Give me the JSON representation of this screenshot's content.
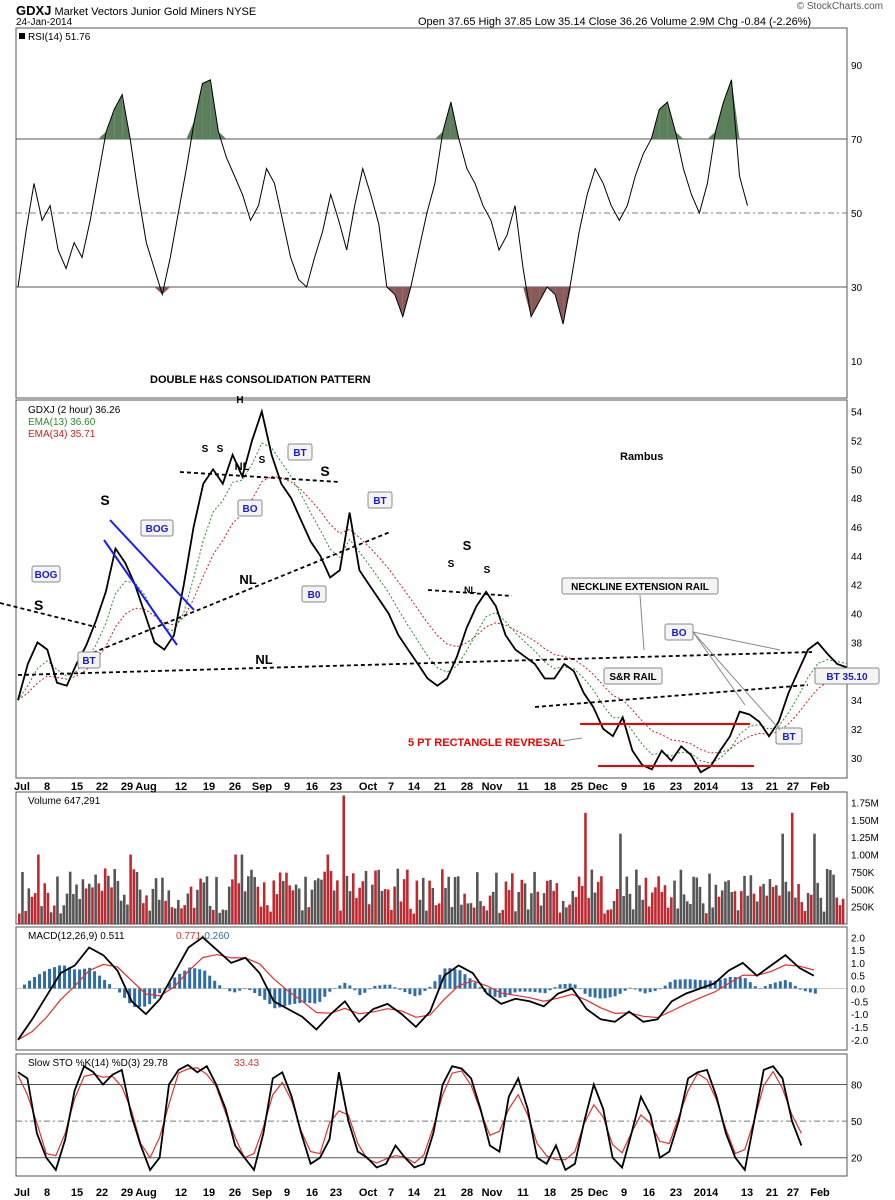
{
  "header": {
    "symbol": "GDXJ",
    "name": "Market Vectors Junior Gold Miners",
    "exchange": "NYSE",
    "date": "24-Jan-2014",
    "quote": "Open 37.65  High 37.85  Low 35.14  Close 36.26  Volume 2.9M  Chg -0.84 (-2.26%)",
    "brand": "© StockCharts.com"
  },
  "colors": {
    "price": "#000000",
    "ema13": "#2e8b2e",
    "ema34": "#cc2222",
    "rsi_overbought_fill": "#5a7f5a",
    "rsi_oversold_fill": "#8a5a5a",
    "volume_up": "#555555",
    "volume_down": "#c0282e",
    "macd_line": "#000000",
    "macd_signal": "#e03030",
    "macd_hist": "#2e6ea8",
    "sto_k": "#000000",
    "sto_d": "#e03030",
    "trend_blue": "#1a1aff",
    "rect_red": "#ee0000",
    "box_text": "#1a1ad0"
  },
  "chart_data": [
    {
      "type": "line",
      "panel": "rsi",
      "legend": "RSI(14) 51.76",
      "ylim": [
        0,
        100
      ],
      "yticks": [
        10,
        30,
        50,
        70,
        90
      ],
      "levels": [
        30,
        50,
        70
      ],
      "values": [
        30,
        45,
        58,
        48,
        52,
        40,
        35,
        42,
        38,
        48,
        60,
        72,
        78,
        82,
        70,
        55,
        42,
        35,
        28,
        38,
        50,
        62,
        75,
        85,
        86,
        72,
        65,
        60,
        55,
        48,
        52,
        62,
        58,
        48,
        38,
        32,
        30,
        38,
        45,
        55,
        48,
        40,
        52,
        62,
        55,
        47,
        30,
        28,
        22,
        30,
        40,
        50,
        58,
        72,
        80,
        70,
        62,
        58,
        52,
        48,
        40,
        44,
        52,
        35,
        22,
        26,
        30,
        28,
        20,
        32,
        45,
        55,
        62,
        58,
        52,
        48,
        52,
        60,
        66,
        70,
        78,
        80,
        72,
        62,
        55,
        50,
        58,
        72,
        80,
        86,
        60,
        52
      ],
      "x_fraction_last": 0.88
    },
    {
      "type": "line",
      "panel": "price",
      "legend": [
        "GDXJ (2 hour) 36.26",
        "EMA(13) 36.60",
        "EMA(34) 35.71"
      ],
      "title": "DOUBLE H&S CONSOLIDATION PATTERN",
      "author": "Rambus",
      "ylim": [
        28.6,
        54.8
      ],
      "yticks": [
        30,
        32,
        34,
        36,
        38,
        40,
        42,
        44,
        46,
        48,
        50,
        52,
        54
      ],
      "x_ticks": [
        "Jul",
        "8",
        "15",
        "22",
        "29",
        "Aug",
        "12",
        "19",
        "26",
        "Sep",
        "9",
        "16",
        "23",
        "Oct",
        "7",
        "14",
        "21",
        "28",
        "Nov",
        "11",
        "18",
        "25",
        "Dec",
        "9",
        "16",
        "23",
        "2014",
        "13",
        "21",
        "27",
        "Feb"
      ],
      "close": [
        34.0,
        36.5,
        38.0,
        37.5,
        35.2,
        35.0,
        36.5,
        37.8,
        39.5,
        41.5,
        44.5,
        43.5,
        42.0,
        40.0,
        38.0,
        37.5,
        38.5,
        42.0,
        46.0,
        49.0,
        50.0,
        49.0,
        51.0,
        49.5,
        52.0,
        54.0,
        51.0,
        49.0,
        48.0,
        46.5,
        45.0,
        44.0,
        42.5,
        43.0,
        47.0,
        43.0,
        42.0,
        41.0,
        40.0,
        38.5,
        37.5,
        36.5,
        35.5,
        35.0,
        35.5,
        37.0,
        39.0,
        40.5,
        41.5,
        40.5,
        38.5,
        37.5,
        37.0,
        36.5,
        35.5,
        35.5,
        36.5,
        36.0,
        34.5,
        33.5,
        32.0,
        31.5,
        32.8,
        30.5,
        29.5,
        29.2,
        30.5,
        29.8,
        30.8,
        30.2,
        29.0,
        29.4,
        30.5,
        31.5,
        33.2,
        33.0,
        32.5,
        31.5,
        32.5,
        34.5,
        36.0,
        37.5,
        38.0,
        37.2,
        36.5,
        36.26
      ],
      "annotations": [
        "S",
        "BOG",
        "BT",
        "NL",
        "S",
        "BOG",
        "S",
        "S",
        "H",
        "S",
        "NL",
        "BO",
        "BT",
        "S",
        "B0",
        "BT",
        "NL",
        "S",
        "S",
        "S",
        "NL",
        "NECKLINE EXTENSION RAIL",
        "BO",
        "S&R RAIL",
        "BT",
        "BT 35.10",
        "5 PT RECTANGLE REVRESAL"
      ]
    },
    {
      "type": "bar",
      "panel": "volume",
      "legend": "Volume 647,291",
      "ylim": [
        0,
        1900000
      ],
      "ytick_labels": [
        "250K",
        "500K",
        "750K",
        "1.00M",
        "1.25M",
        "1.50M",
        "1.75M"
      ],
      "yticks": [
        250000,
        500000,
        750000,
        1000000,
        1250000,
        1500000,
        1750000
      ]
    },
    {
      "type": "line",
      "panel": "macd",
      "legend": [
        "MACD(12,26,9) 0.511",
        "0.771",
        "-0.260"
      ],
      "ylim": [
        -2.4,
        2.4
      ],
      "yticks": [
        -2.0,
        -1.5,
        -1.0,
        -0.5,
        0.0,
        0.5,
        1.0,
        1.5,
        2.0
      ],
      "macd": [
        -2.0,
        -1.2,
        -0.3,
        0.6,
        0.9,
        1.6,
        1.3,
        0.7,
        -0.5,
        -1.0,
        -0.4,
        0.6,
        1.6,
        2.0,
        1.5,
        1.0,
        1.2,
        0.6,
        -0.5,
        -0.8,
        -1.1,
        -1.6,
        -1.0,
        -0.5,
        -1.3,
        -0.8,
        -0.6,
        -1.0,
        -1.5,
        -0.9,
        0.5,
        0.9,
        0.6,
        -0.2,
        -0.6,
        -0.4,
        -0.5,
        -0.7,
        -0.2,
        0.0,
        -0.8,
        -1.2,
        -1.3,
        -0.9,
        -1.3,
        -1.2,
        -0.5,
        -0.2,
        0.0,
        0.2,
        0.7,
        1.0,
        0.5,
        0.9,
        1.3,
        0.8,
        0.5
      ]
    },
    {
      "type": "line",
      "panel": "sto",
      "legend": [
        "Slow STO %K(14) %D(3) 29.78",
        "33.43"
      ],
      "ylim": [
        5,
        105
      ],
      "yticks": [
        20,
        50,
        80
      ],
      "k": [
        90,
        85,
        40,
        20,
        10,
        35,
        75,
        95,
        90,
        80,
        88,
        92,
        55,
        30,
        10,
        20,
        80,
        92,
        96,
        90,
        95,
        80,
        60,
        30,
        20,
        10,
        40,
        85,
        90,
        70,
        40,
        15,
        20,
        35,
        90,
        50,
        25,
        20,
        12,
        15,
        30,
        20,
        12,
        15,
        40,
        80,
        95,
        93,
        85,
        60,
        30,
        25,
        70,
        85,
        60,
        20,
        15,
        30,
        10,
        15,
        50,
        80,
        60,
        20,
        12,
        40,
        70,
        55,
        20,
        25,
        50,
        85,
        90,
        92,
        70,
        40,
        20,
        10,
        50,
        92,
        95,
        85,
        50,
        30
      ]
    }
  ]
}
